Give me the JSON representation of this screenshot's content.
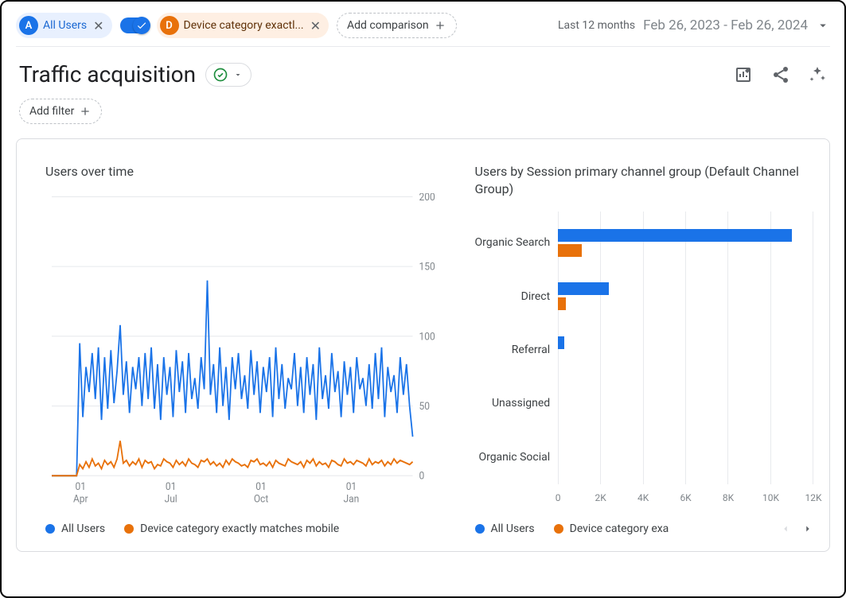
{
  "colors": {
    "series_a": "#1a73e8",
    "series_b": "#e8710a",
    "grid": "#e8eaed",
    "axis_text": "#80868b"
  },
  "topbar": {
    "chip_a_label": "All Users",
    "chip_d_label": "Device category exactl...",
    "add_comparison": "Add comparison",
    "date_prefix": "Last 12 months",
    "date_range": "Feb 26, 2023 - Feb 26, 2024"
  },
  "header": {
    "title": "Traffic acquisition",
    "add_filter": "Add filter"
  },
  "line_chart": {
    "title": "Users over time",
    "y_ticks": [
      0,
      50,
      100,
      150,
      200
    ],
    "ylim": [
      0,
      200
    ],
    "x_ticks": [
      {
        "pos": 0.08,
        "top": "01",
        "bottom": "Apr"
      },
      {
        "pos": 0.33,
        "top": "01",
        "bottom": "Jul"
      },
      {
        "pos": 0.58,
        "top": "01",
        "bottom": "Oct"
      },
      {
        "pos": 0.83,
        "top": "01",
        "bottom": "Jan"
      }
    ],
    "series_a_values": [
      0,
      0,
      0,
      0,
      0,
      0,
      0,
      0,
      0,
      95,
      42,
      78,
      60,
      88,
      55,
      92,
      40,
      85,
      48,
      90,
      52,
      75,
      108,
      58,
      82,
      45,
      78,
      62,
      85,
      50,
      88,
      55,
      92,
      48,
      80,
      40,
      85,
      58,
      78,
      42,
      90,
      60,
      82,
      45,
      88,
      55,
      70,
      48,
      85,
      62,
      140,
      58,
      80,
      45,
      92,
      50,
      78,
      40,
      85,
      62,
      88,
      55,
      72,
      48,
      90,
      58,
      82,
      45,
      78,
      60,
      85,
      42,
      92,
      55,
      80,
      48,
      70,
      62,
      88,
      50,
      78,
      45,
      85,
      58,
      80,
      40,
      92,
      55,
      72,
      48,
      88,
      60,
      75,
      42,
      82,
      58,
      78,
      45,
      85,
      62,
      70,
      50,
      80,
      48,
      88,
      55,
      92,
      42,
      78,
      60,
      72,
      45,
      85,
      58,
      80,
      50,
      28
    ],
    "series_b_values": [
      0,
      0,
      0,
      0,
      0,
      0,
      0,
      0,
      0,
      8,
      5,
      10,
      6,
      12,
      7,
      9,
      5,
      11,
      8,
      10,
      6,
      12,
      25,
      9,
      11,
      7,
      10,
      8,
      12,
      6,
      11,
      9,
      10,
      5,
      8,
      7,
      12,
      10,
      9,
      6,
      11,
      8,
      10,
      7,
      12,
      9,
      8,
      6,
      11,
      10,
      12,
      8,
      10,
      7,
      9,
      6,
      11,
      8,
      12,
      10,
      9,
      7,
      8,
      6,
      11,
      10,
      12,
      8,
      9,
      7,
      10,
      6,
      11,
      9,
      8,
      7,
      12,
      10,
      9,
      8,
      10,
      6,
      11,
      9,
      12,
      7,
      10,
      8,
      9,
      6,
      11,
      10,
      8,
      7,
      12,
      9,
      10,
      8,
      11,
      10,
      9,
      7,
      12,
      8,
      10,
      9,
      11,
      7,
      10,
      8,
      12,
      9,
      11,
      10,
      9,
      8,
      10
    ],
    "legend_a": "All Users",
    "legend_b": "Device category exactly matches mobile"
  },
  "bar_chart": {
    "title": "Users by Session primary channel group (Default Channel Group)",
    "x_max": 12000,
    "x_ticks": [
      "0",
      "2K",
      "4K",
      "6K",
      "8K",
      "10K",
      "12K"
    ],
    "categories": [
      {
        "label": "Organic Search",
        "a": 11000,
        "b": 1100
      },
      {
        "label": "Direct",
        "a": 2400,
        "b": 350
      },
      {
        "label": "Referral",
        "a": 300,
        "b": 0
      },
      {
        "label": "Unassigned",
        "a": 0,
        "b": 0
      },
      {
        "label": "Organic Social",
        "a": 0,
        "b": 0
      }
    ],
    "legend_a": "All Users",
    "legend_b": "Device category exa"
  }
}
